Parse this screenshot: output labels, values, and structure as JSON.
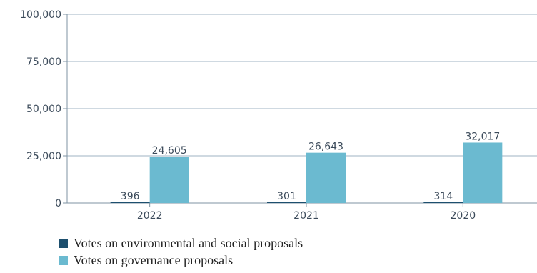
{
  "chart_data": {
    "type": "bar",
    "categories": [
      "2022",
      "2021",
      "2020"
    ],
    "series": [
      {
        "name": "Votes on environmental and social proposals",
        "values": [
          396,
          301,
          314
        ],
        "color": "#1d4f6e"
      },
      {
        "name": "Votes on governance proposals",
        "values": [
          24605,
          26643,
          32017
        ],
        "color": "#6bbad0"
      }
    ],
    "data_labels": [
      [
        "396",
        "301",
        "314"
      ],
      [
        "24,605",
        "26,643",
        "32,017"
      ]
    ],
    "ylim": [
      0,
      100000
    ],
    "yticks": [
      0,
      25000,
      50000,
      75000,
      100000
    ],
    "ytick_labels": [
      "0",
      "25,000",
      "50,000",
      "75,000",
      "100,000"
    ],
    "grid": true,
    "legend_position": "bottom"
  }
}
